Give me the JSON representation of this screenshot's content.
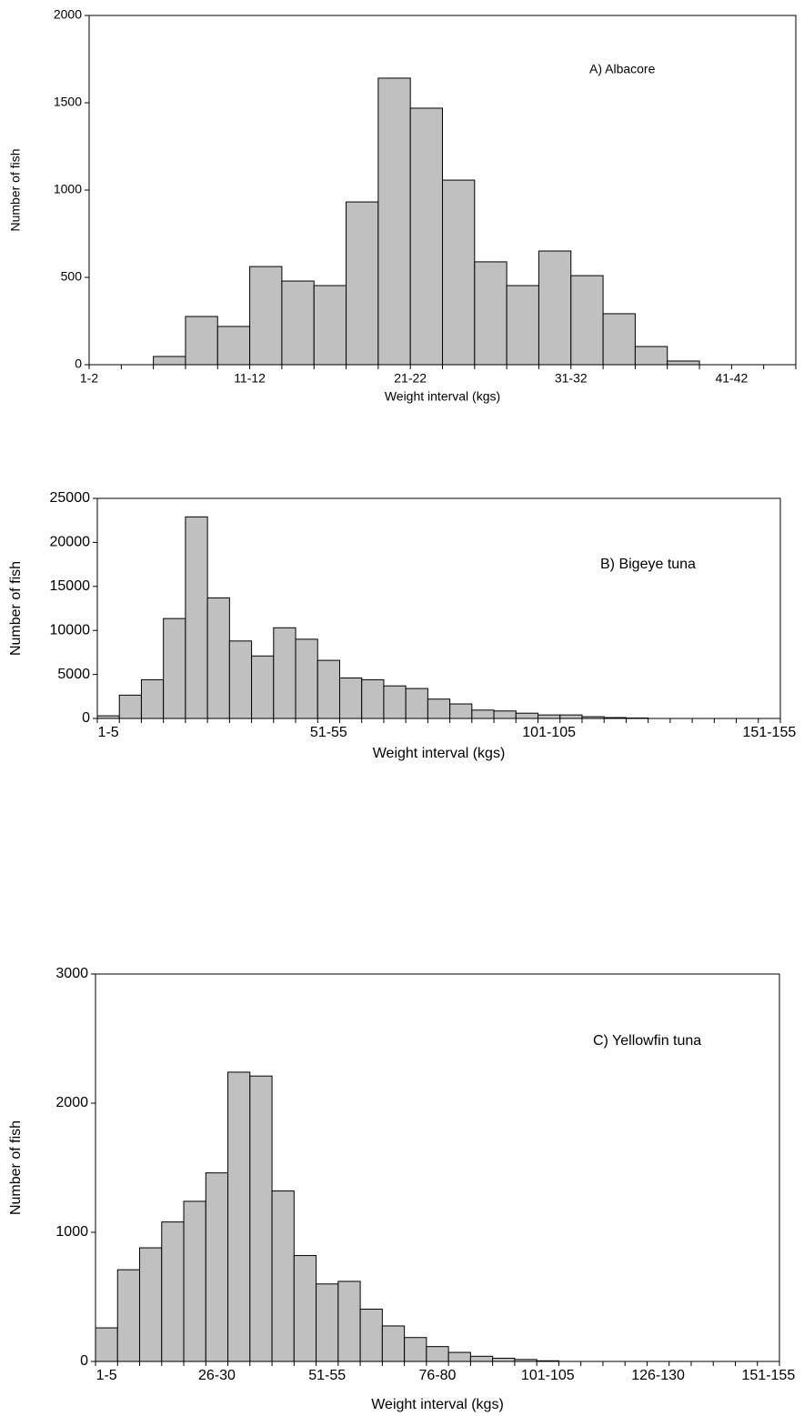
{
  "chart_data": [
    {
      "type": "bar",
      "annotation": "A) Albacore",
      "xlabel": "Weight interval (kgs)",
      "ylabel": "Number of fish",
      "categories": [
        "1-2",
        null,
        null,
        null,
        null,
        "11-12",
        null,
        null,
        null,
        null,
        "21-22",
        null,
        null,
        null,
        null,
        "31-32",
        null,
        null,
        null,
        null,
        "41-42",
        null
      ],
      "values": [
        0,
        0,
        47,
        276,
        219,
        562,
        479,
        453,
        932,
        1641,
        1469,
        1057,
        589,
        453,
        651,
        510,
        292,
        104,
        21,
        0,
        0,
        0
      ],
      "color": "#c0c0c0",
      "ylim": [
        0,
        2000
      ],
      "yticks": [
        0,
        500,
        1000,
        1500,
        2000
      ]
    },
    {
      "type": "bar",
      "annotation": "B) Bigeye tuna",
      "xlabel": "Weight interval (kgs)",
      "ylabel": "Number of fish",
      "categories": [
        "1-5",
        null,
        null,
        null,
        null,
        null,
        null,
        null,
        null,
        null,
        "51-55",
        null,
        null,
        null,
        null,
        null,
        null,
        null,
        null,
        null,
        "101-105",
        null,
        null,
        null,
        null,
        null,
        null,
        null,
        null,
        null,
        "151-155"
      ],
      "values": [
        300,
        2650,
        4400,
        11350,
        22900,
        13700,
        8800,
        7100,
        10300,
        9000,
        6600,
        4600,
        4400,
        3700,
        3400,
        2200,
        1650,
        950,
        850,
        600,
        400,
        400,
        200,
        100,
        50,
        0,
        0,
        0,
        0,
        0,
        0
      ],
      "color": "#c0c0c0",
      "ylim": [
        0,
        25000
      ],
      "yticks": [
        0,
        5000,
        10000,
        15000,
        20000,
        25000
      ]
    },
    {
      "type": "bar",
      "annotation": "C) Yellowfin tuna",
      "xlabel": "Weight interval (kgs)",
      "ylabel": "Number of fish",
      "categories": [
        "1-5",
        null,
        null,
        null,
        null,
        "26-30",
        null,
        null,
        null,
        null,
        "51-55",
        null,
        null,
        null,
        null,
        "76-80",
        null,
        null,
        null,
        null,
        "101-105",
        null,
        null,
        null,
        null,
        "126-130",
        null,
        null,
        null,
        null,
        "151-155"
      ],
      "values": [
        260,
        710,
        880,
        1080,
        1240,
        1460,
        2240,
        2210,
        1320,
        820,
        600,
        620,
        405,
        275,
        185,
        115,
        70,
        40,
        25,
        15,
        5,
        0,
        0,
        0,
        0,
        0,
        0,
        0,
        0,
        0,
        0
      ],
      "color": "#c0c0c0",
      "ylim": [
        0,
        3000
      ],
      "yticks": [
        0,
        1000,
        2000,
        3000
      ]
    }
  ]
}
